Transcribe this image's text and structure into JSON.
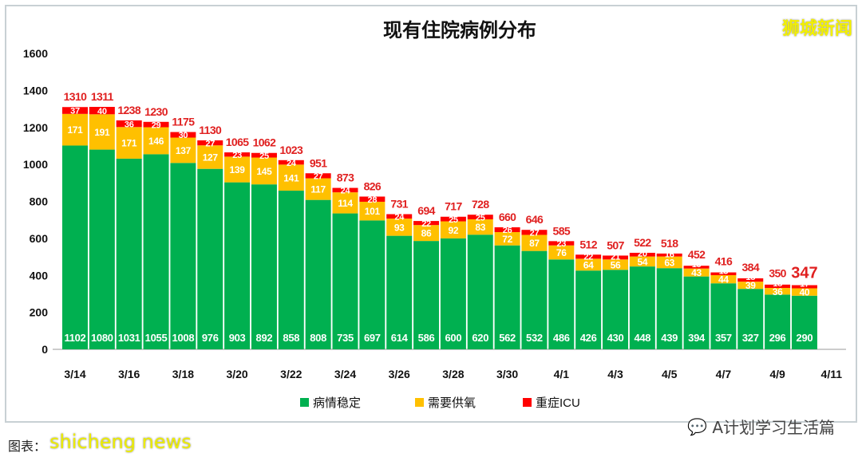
{
  "watermarks": {
    "top": "狮城新闻",
    "bottom": "shicheng news",
    "wechat": "A计划学习生活篇"
  },
  "caption": "图表：",
  "chart_data": {
    "type": "bar",
    "stacked": true,
    "title": "现有住院病例分布",
    "categories": [
      "3/14",
      "3/15",
      "3/16",
      "3/17",
      "3/18",
      "3/19",
      "3/20",
      "3/21",
      "3/22",
      "3/23",
      "3/24",
      "3/25",
      "3/26",
      "3/27",
      "3/28",
      "3/29",
      "3/30",
      "3/31",
      "4/1",
      "4/2",
      "4/3",
      "4/4",
      "4/5",
      "4/6",
      "4/7",
      "4/8",
      "4/9",
      "4/10"
    ],
    "xtick_labels": [
      "3/14",
      "3/16",
      "3/18",
      "3/20",
      "3/22",
      "3/24",
      "3/26",
      "3/28",
      "3/30",
      "4/1",
      "4/3",
      "4/5",
      "4/7",
      "4/9",
      "4/11"
    ],
    "ylim": [
      0,
      1600
    ],
    "yticks": [
      0,
      200,
      400,
      600,
      800,
      1000,
      1200,
      1400,
      1600
    ],
    "grid": false,
    "legend_position": "bottom",
    "series": [
      {
        "name": "病情稳定",
        "color": "#00b050",
        "values": [
          1102,
          1080,
          1031,
          1055,
          1008,
          976,
          903,
          892,
          858,
          808,
          735,
          697,
          614,
          586,
          600,
          620,
          562,
          532,
          486,
          426,
          430,
          448,
          439,
          394,
          357,
          327,
          296,
          290
        ]
      },
      {
        "name": "需要供氧",
        "color": "#ffc000",
        "values": [
          171,
          191,
          171,
          146,
          137,
          127,
          139,
          145,
          141,
          117,
          114,
          101,
          93,
          86,
          92,
          83,
          72,
          87,
          76,
          64,
          56,
          54,
          63,
          43,
          44,
          39,
          36,
          40
        ]
      },
      {
        "name": "重症ICU",
        "color": "#ff0000",
        "values": [
          37,
          40,
          36,
          29,
          30,
          27,
          23,
          25,
          24,
          27,
          24,
          28,
          24,
          22,
          25,
          25,
          26,
          27,
          23,
          22,
          21,
          20,
          16,
          15,
          15,
          18,
          18,
          17
        ]
      }
    ],
    "totals": [
      1310,
      1311,
      1238,
      1230,
      1175,
      1130,
      1065,
      1062,
      1023,
      951,
      873,
      826,
      731,
      694,
      717,
      728,
      660,
      646,
      585,
      512,
      507,
      522,
      518,
      452,
      416,
      384,
      350,
      347
    ],
    "total_label_color": "#e02020"
  }
}
